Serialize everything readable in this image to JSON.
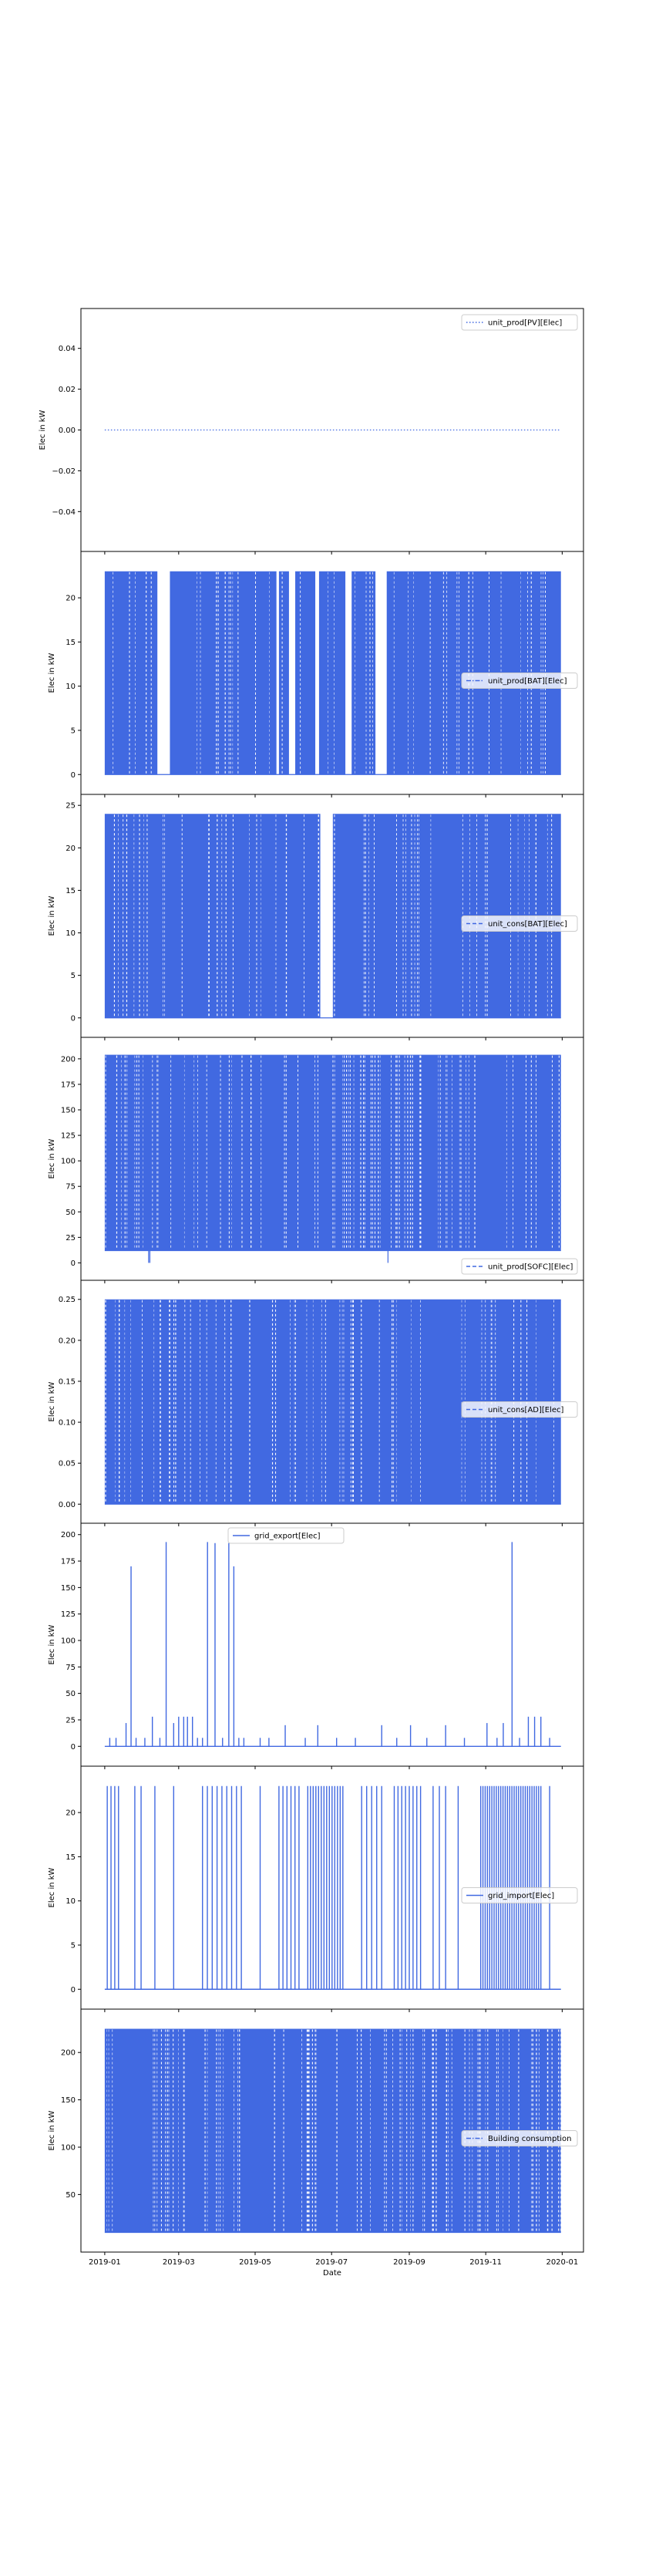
{
  "chart_data": [
    {
      "type": "line",
      "legend": "unit_prod[PV][Elec]",
      "legend_loc": "upper right",
      "line_style": "dotted",
      "ylabel": "Elec in kW",
      "ylim": [
        -0.055,
        0.055
      ],
      "yticks": [
        -0.04,
        -0.02,
        0.0,
        0.02,
        0.04
      ],
      "ytick_labels": [
        "−0.04",
        "−0.02",
        "0.00",
        "0.02",
        "0.04"
      ],
      "pattern": "constant",
      "values": [
        0,
        0
      ],
      "x": [
        "2019-01-01",
        "2019-12-31"
      ]
    },
    {
      "type": "line",
      "legend": "unit_prod[BAT][Elec]",
      "legend_loc": "center right",
      "line_style": "dashdot",
      "ylabel": "Elec in kW",
      "ylim": [
        -1.2,
        24.2
      ],
      "yticks": [
        0,
        5,
        10,
        15,
        20
      ],
      "ytick_labels": [
        "0",
        "5",
        "10",
        "15",
        "20"
      ],
      "pattern": "bursts",
      "low": 0,
      "high": 23,
      "active": [
        [
          "2019-01-01",
          "2019-02-12"
        ],
        [
          "2019-02-22",
          "2019-05-18"
        ],
        [
          "2019-05-20",
          "2019-05-28"
        ],
        [
          "2019-06-02",
          "2019-06-18"
        ],
        [
          "2019-06-21",
          "2019-07-12"
        ],
        [
          "2019-07-17",
          "2019-08-05"
        ],
        [
          "2019-08-14",
          "2019-12-31"
        ]
      ]
    },
    {
      "type": "line",
      "legend": "unit_cons[BAT][Elec]",
      "legend_loc": "center right",
      "line_style": "dashed",
      "ylabel": "Elec in kW",
      "ylim": [
        -1.2,
        25.2
      ],
      "yticks": [
        0,
        5,
        10,
        15,
        20,
        25
      ],
      "ytick_labels": [
        "0",
        "5",
        "10",
        "15",
        "20",
        "25"
      ],
      "pattern": "bursts",
      "low": 0,
      "high": 24,
      "active": [
        [
          "2019-01-01",
          "2019-06-22"
        ],
        [
          "2019-07-02",
          "2019-12-31"
        ]
      ]
    },
    {
      "type": "line",
      "legend": "unit_prod[SOFC][Elec]",
      "legend_loc": "lower right",
      "line_style": "dashed",
      "ylabel": "Elec in kW",
      "ylim": [
        -8,
        212
      ],
      "yticks": [
        0,
        25,
        50,
        75,
        100,
        125,
        150,
        175,
        200
      ],
      "ytick_labels": [
        "0",
        "25",
        "50",
        "75",
        "100",
        "125",
        "150",
        "175",
        "200"
      ],
      "pattern": "dense",
      "low": 12,
      "high": 204,
      "dips": [
        {
          "x": "2019-02-05",
          "y": 0
        },
        {
          "x": "2019-02-06",
          "y": 0
        },
        {
          "x": "2019-08-15",
          "y": 0
        },
        {
          "x": "2019-01-20",
          "y": 12
        },
        {
          "x": "2019-04-10",
          "y": 12
        }
      ]
    },
    {
      "type": "line",
      "legend": "unit_cons[AD][Elec]",
      "legend_loc": "center right",
      "line_style": "dashed",
      "ylabel": "Elec in kW",
      "ylim": [
        -0.012,
        0.262
      ],
      "yticks": [
        0.0,
        0.05,
        0.1,
        0.15,
        0.2,
        0.25
      ],
      "ytick_labels": [
        "0.00",
        "0.05",
        "0.10",
        "0.15",
        "0.20",
        "0.25"
      ],
      "pattern": "bursts",
      "low": 0,
      "high": 0.25,
      "active": [
        [
          "2019-01-01",
          "2019-12-31"
        ]
      ]
    },
    {
      "type": "line",
      "legend": "grid_export[Elec]",
      "legend_loc": "upper center",
      "line_style": "solid",
      "ylabel": "Elec in kW",
      "ylim": [
        -10,
        202
      ],
      "yticks": [
        0,
        25,
        50,
        75,
        100,
        125,
        150,
        175,
        200
      ],
      "ytick_labels": [
        "0",
        "25",
        "50",
        "75",
        "100",
        "125",
        "150",
        "175",
        "200"
      ],
      "pattern": "spikes",
      "base": 0,
      "spikes": [
        {
          "x": "2019-01-05",
          "y": 8
        },
        {
          "x": "2019-01-10",
          "y": 8
        },
        {
          "x": "2019-01-18",
          "y": 22
        },
        {
          "x": "2019-01-22",
          "y": 170
        },
        {
          "x": "2019-01-26",
          "y": 8
        },
        {
          "x": "2019-02-02",
          "y": 8
        },
        {
          "x": "2019-02-08",
          "y": 28
        },
        {
          "x": "2019-02-14",
          "y": 8
        },
        {
          "x": "2019-02-19",
          "y": 193
        },
        {
          "x": "2019-02-25",
          "y": 22
        },
        {
          "x": "2019-03-01",
          "y": 28
        },
        {
          "x": "2019-03-05",
          "y": 28
        },
        {
          "x": "2019-03-08",
          "y": 28
        },
        {
          "x": "2019-03-12",
          "y": 28
        },
        {
          "x": "2019-03-16",
          "y": 8
        },
        {
          "x": "2019-03-20",
          "y": 8
        },
        {
          "x": "2019-03-24",
          "y": 193
        },
        {
          "x": "2019-03-30",
          "y": 192
        },
        {
          "x": "2019-04-05",
          "y": 8
        },
        {
          "x": "2019-04-10",
          "y": 192
        },
        {
          "x": "2019-04-14",
          "y": 170
        },
        {
          "x": "2019-04-18",
          "y": 8
        },
        {
          "x": "2019-04-22",
          "y": 8
        },
        {
          "x": "2019-05-05",
          "y": 8
        },
        {
          "x": "2019-05-12",
          "y": 8
        },
        {
          "x": "2019-05-25",
          "y": 20
        },
        {
          "x": "2019-06-10",
          "y": 8
        },
        {
          "x": "2019-06-20",
          "y": 20
        },
        {
          "x": "2019-07-05",
          "y": 8
        },
        {
          "x": "2019-07-20",
          "y": 8
        },
        {
          "x": "2019-08-10",
          "y": 20
        },
        {
          "x": "2019-08-22",
          "y": 8
        },
        {
          "x": "2019-09-02",
          "y": 20
        },
        {
          "x": "2019-09-15",
          "y": 8
        },
        {
          "x": "2019-09-30",
          "y": 20
        },
        {
          "x": "2019-10-15",
          "y": 8
        },
        {
          "x": "2019-11-02",
          "y": 22
        },
        {
          "x": "2019-11-10",
          "y": 8
        },
        {
          "x": "2019-11-15",
          "y": 22
        },
        {
          "x": "2019-11-22",
          "y": 193
        },
        {
          "x": "2019-11-28",
          "y": 8
        },
        {
          "x": "2019-12-05",
          "y": 28
        },
        {
          "x": "2019-12-10",
          "y": 28
        },
        {
          "x": "2019-12-15",
          "y": 28
        },
        {
          "x": "2019-12-22",
          "y": 8
        }
      ]
    },
    {
      "type": "line",
      "legend": "grid_import[Elec]",
      "legend_loc": "center right",
      "line_style": "solid",
      "ylabel": "Elec in kW",
      "ylim": [
        -1.2,
        24.2
      ],
      "yticks": [
        0,
        5,
        10,
        15,
        20
      ],
      "ytick_labels": [
        "0",
        "5",
        "10",
        "15",
        "20"
      ],
      "pattern": "spikes",
      "base": 0,
      "spikes_clusters": [
        {
          "from": "2019-01-03",
          "to": "2019-01-12",
          "n": 4,
          "y": 23
        },
        {
          "from": "2019-01-25",
          "to": "2019-01-30",
          "n": 2,
          "y": 23
        },
        {
          "from": "2019-02-10",
          "to": "2019-02-12",
          "n": 1,
          "y": 23
        },
        {
          "from": "2019-02-25",
          "to": "2019-02-27",
          "n": 1,
          "y": 23
        },
        {
          "from": "2019-03-20",
          "to": "2019-04-20",
          "n": 9,
          "y": 23
        },
        {
          "from": "2019-05-05",
          "to": "2019-05-06",
          "n": 1,
          "y": 23
        },
        {
          "from": "2019-05-20",
          "to": "2019-06-05",
          "n": 6,
          "y": 23
        },
        {
          "from": "2019-06-12",
          "to": "2019-07-10",
          "n": 14,
          "y": 23
        },
        {
          "from": "2019-07-25",
          "to": "2019-08-10",
          "n": 5,
          "y": 23
        },
        {
          "from": "2019-08-20",
          "to": "2019-09-10",
          "n": 8,
          "y": 23
        },
        {
          "from": "2019-09-20",
          "to": "2019-09-30",
          "n": 3,
          "y": 23
        },
        {
          "from": "2019-10-10",
          "to": "2019-10-12",
          "n": 1,
          "y": 23
        },
        {
          "from": "2019-10-28",
          "to": "2019-12-15",
          "n": 28,
          "y": 23
        },
        {
          "from": "2019-12-22",
          "to": "2019-12-24",
          "n": 1,
          "y": 23
        }
      ]
    },
    {
      "type": "line",
      "legend": "Building consumption",
      "legend_loc": "center right",
      "line_style": "dashdot",
      "ylabel": "Elec in kW",
      "ylim": [
        -1,
        236
      ],
      "yticks": [
        50,
        100,
        150,
        200
      ],
      "ytick_labels": [
        "50",
        "100",
        "150",
        "200"
      ],
      "pattern": "dense",
      "low": 10,
      "high": 225
    }
  ],
  "shared_x": {
    "xlabel": "Date",
    "xlim": [
      "2018-12-13",
      "2020-01-18"
    ],
    "xticks": [
      "2019-01-01",
      "2019-03-01",
      "2019-05-01",
      "2019-07-01",
      "2019-09-01",
      "2019-11-01",
      "2020-01-01"
    ],
    "xtick_labels": [
      "2019-01",
      "2019-03",
      "2019-05",
      "2019-07",
      "2019-09",
      "2019-11",
      "2020-01"
    ]
  },
  "colors": {
    "series": "#4169e1",
    "axes": "#000000",
    "legend_edge": "#cccccc"
  }
}
